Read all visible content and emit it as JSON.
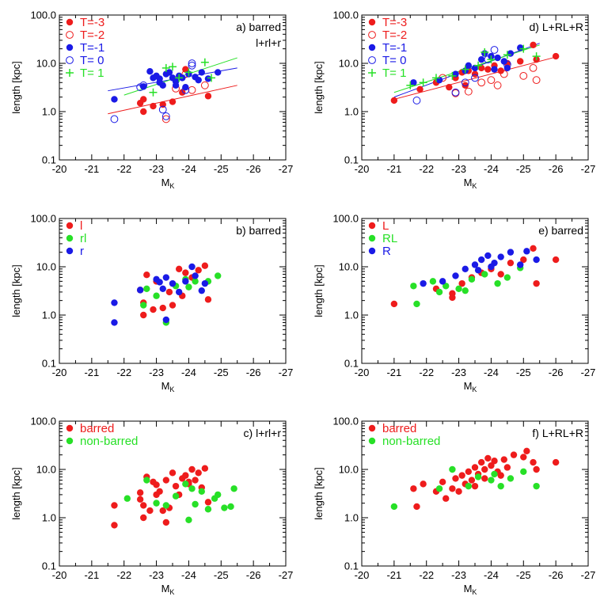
{
  "colors": {
    "red": "#ee1c1c",
    "green": "#27e027",
    "blue": "#1a1ae6",
    "axis": "#000000"
  },
  "axes": {
    "xlabel": "M",
    "xlabel_sub": "K",
    "ylabel": "length [kpc]",
    "xlim": [
      -20,
      -27
    ],
    "ylim": [
      0.1,
      100
    ],
    "yscale": "log",
    "xticks": [
      "-20",
      "-21",
      "-22",
      "-23",
      "-24",
      "-25",
      "-26",
      "-27"
    ],
    "yticks": [
      "0.1",
      "1.0",
      "10.0",
      "100.0"
    ]
  },
  "chart_data": [
    {
      "id": "a",
      "type": "scatter",
      "title_lines": [
        "a)  barred",
        "l+rl+r"
      ],
      "legend": [
        {
          "label": "T=-3",
          "marker": "filled",
          "color": "red"
        },
        {
          "label": "T=-2",
          "marker": "open",
          "color": "red"
        },
        {
          "label": "T=-1",
          "marker": "filled",
          "color": "blue"
        },
        {
          "label": "T= 0",
          "marker": "open",
          "color": "blue"
        },
        {
          "label": "T= 1",
          "marker": "plus",
          "color": "green"
        }
      ],
      "fits": [
        {
          "color": "red",
          "x": [
            -21.5,
            -25.5
          ],
          "y": [
            0.9,
            3.5
          ]
        },
        {
          "color": "blue",
          "x": [
            -21.5,
            -25.5
          ],
          "y": [
            2.7,
            8.0
          ]
        },
        {
          "color": "green",
          "x": [
            -22.0,
            -25.5
          ],
          "y": [
            2.2,
            13.0
          ]
        }
      ],
      "series": [
        {
          "marker": "filled",
          "color": "red",
          "x": [
            -22.6,
            -22.6,
            -22.9,
            -23.2,
            -23.5,
            -23.8,
            -24.6,
            -22.5,
            -23.9
          ],
          "y": [
            1.8,
            1.0,
            1.3,
            1.4,
            1.6,
            2.5,
            2.1,
            1.5,
            7.5
          ]
        },
        {
          "marker": "open",
          "color": "red",
          "x": [
            -23.3,
            -23.6,
            -24.1,
            -24.5,
            -23.9
          ],
          "y": [
            0.7,
            3.0,
            2.8,
            3.5,
            6.0
          ]
        },
        {
          "marker": "filled",
          "color": "blue",
          "x": [
            -21.7,
            -22.6,
            -22.8,
            -23.0,
            -23.1,
            -23.2,
            -23.3,
            -23.4,
            -23.5,
            -23.6,
            -23.7,
            -23.8,
            -24.0,
            -24.2,
            -24.4,
            -24.6,
            -24.9,
            -22.9,
            -23.1,
            -23.6,
            -24.3,
            -23.9
          ],
          "y": [
            1.8,
            3.3,
            6.8,
            5.5,
            4.8,
            3.5,
            6.0,
            6.5,
            5.0,
            4.2,
            5.5,
            5.0,
            6.0,
            5.2,
            6.5,
            4.8,
            6.5,
            5.0,
            4.0,
            3.5,
            4.5,
            3.2
          ]
        },
        {
          "marker": "open",
          "color": "blue",
          "x": [
            -21.7,
            -22.5,
            -23.2,
            -23.3,
            -24.1,
            -24.1,
            -23.9,
            -22.6
          ],
          "y": [
            0.7,
            3.2,
            1.1,
            0.8,
            10.0,
            9.0,
            2.8,
            3.5
          ]
        },
        {
          "marker": "plus",
          "color": "green",
          "x": [
            -22.9,
            -23.3,
            -23.5,
            -24.5,
            -24.7,
            -24.0,
            -23.7
          ],
          "y": [
            2.5,
            8.0,
            8.5,
            10.5,
            5.0,
            6.5,
            5.0
          ]
        }
      ]
    },
    {
      "id": "d",
      "type": "scatter",
      "title_lines": [
        "d)  L+RL+R"
      ],
      "legend": [
        {
          "label": "T=-3",
          "marker": "filled",
          "color": "red"
        },
        {
          "label": "T=-2",
          "marker": "open",
          "color": "red"
        },
        {
          "label": "T=-1",
          "marker": "filled",
          "color": "blue"
        },
        {
          "label": "T= 0",
          "marker": "open",
          "color": "blue"
        },
        {
          "label": "T= 1",
          "marker": "plus",
          "color": "green"
        }
      ],
      "fits": [
        {
          "color": "red",
          "x": [
            -21.0,
            -26.0
          ],
          "y": [
            1.8,
            13.5
          ]
        },
        {
          "color": "blue",
          "x": [
            -21.0,
            -25.5
          ],
          "y": [
            2.0,
            26.0
          ]
        },
        {
          "color": "green",
          "x": [
            -21.0,
            -25.5
          ],
          "y": [
            2.5,
            24.0
          ]
        }
      ],
      "series": [
        {
          "marker": "filled",
          "color": "red",
          "x": [
            -21.0,
            -21.8,
            -22.3,
            -22.7,
            -22.9,
            -23.1,
            -23.3,
            -23.5,
            -23.7,
            -23.9,
            -24.1,
            -24.3,
            -24.5,
            -24.9,
            -25.4,
            -26.0,
            -25.3,
            -23.2
          ],
          "y": [
            1.7,
            2.9,
            4.0,
            3.2,
            5.0,
            6.5,
            7.0,
            6.0,
            8.0,
            7.5,
            9.0,
            7.0,
            10.0,
            11.0,
            12.0,
            14.0,
            24.0,
            3.5
          ]
        },
        {
          "marker": "open",
          "color": "red",
          "x": [
            -22.5,
            -22.9,
            -23.3,
            -23.7,
            -24.0,
            -24.4,
            -25.0,
            -25.3,
            -25.4,
            -24.2
          ],
          "y": [
            5.0,
            2.4,
            2.6,
            4.0,
            4.5,
            6.0,
            5.5,
            8.0,
            4.5,
            3.5
          ]
        },
        {
          "marker": "filled",
          "color": "blue",
          "x": [
            -21.6,
            -22.4,
            -22.9,
            -23.2,
            -23.5,
            -23.7,
            -23.8,
            -24.0,
            -24.2,
            -24.4,
            -24.6,
            -24.9,
            -23.3,
            -24.5,
            -24.1
          ],
          "y": [
            4.0,
            4.5,
            6.0,
            7.0,
            8.0,
            12.0,
            16.0,
            14.0,
            13.0,
            11.0,
            16.0,
            21.0,
            9.0,
            8.0,
            7.5
          ]
        },
        {
          "marker": "open",
          "color": "blue",
          "x": [
            -21.7,
            -22.9,
            -23.5,
            -23.9,
            -24.1,
            -24.5,
            -23.2
          ],
          "y": [
            1.7,
            2.5,
            5.0,
            12.0,
            19.0,
            9.5,
            4.0
          ]
        },
        {
          "marker": "plus",
          "color": "green",
          "x": [
            -21.5,
            -21.9,
            -22.3,
            -22.8,
            -23.2,
            -23.6,
            -24.0,
            -24.5,
            -25.0,
            -25.4,
            -23.8
          ],
          "y": [
            3.5,
            4.0,
            5.0,
            5.5,
            7.5,
            9.0,
            12.0,
            15.0,
            20.0,
            14.0,
            17.0
          ]
        }
      ]
    },
    {
      "id": "b",
      "type": "scatter",
      "title_lines": [
        "b) barred"
      ],
      "legend": [
        {
          "label": "l",
          "marker": "filled",
          "color": "red"
        },
        {
          "label": "rl",
          "marker": "filled",
          "color": "green"
        },
        {
          "label": "r",
          "marker": "filled",
          "color": "blue"
        }
      ],
      "fits": [],
      "series": [
        {
          "marker": "filled",
          "color": "red",
          "x": [
            -22.6,
            -22.6,
            -22.9,
            -23.2,
            -23.5,
            -23.8,
            -24.6,
            -22.5,
            -23.9,
            -22.7,
            -23.4,
            -24.1,
            -24.5,
            -23.0,
            -24.3,
            -23.7
          ],
          "y": [
            1.8,
            1.0,
            1.3,
            1.4,
            1.6,
            2.5,
            2.1,
            3.3,
            7.5,
            6.8,
            3.0,
            6.0,
            10.5,
            5.0,
            8.5,
            9.0
          ]
        },
        {
          "marker": "filled",
          "color": "green",
          "x": [
            -22.7,
            -23.0,
            -23.3,
            -23.6,
            -24.0,
            -24.2,
            -24.6,
            -24.9,
            -23.9,
            -22.6
          ],
          "y": [
            3.5,
            2.5,
            0.7,
            4.0,
            3.8,
            5.0,
            5.0,
            6.5,
            5.5,
            1.6
          ]
        },
        {
          "marker": "filled",
          "color": "blue",
          "x": [
            -21.7,
            -21.7,
            -22.5,
            -23.0,
            -23.1,
            -23.2,
            -23.3,
            -23.5,
            -23.7,
            -23.9,
            -24.1,
            -24.2,
            -24.5,
            -23.3,
            -24.4
          ],
          "y": [
            1.8,
            0.7,
            3.3,
            5.5,
            4.8,
            3.5,
            6.0,
            4.5,
            3.0,
            5.0,
            10.0,
            6.5,
            4.5,
            0.8,
            3.2
          ]
        }
      ]
    },
    {
      "id": "e",
      "type": "scatter",
      "title_lines": [
        "e) barred"
      ],
      "legend": [
        {
          "label": "L",
          "marker": "filled",
          "color": "red"
        },
        {
          "label": "RL",
          "marker": "filled",
          "color": "green"
        },
        {
          "label": "R",
          "marker": "filled",
          "color": "blue"
        }
      ],
      "fits": [],
      "series": [
        {
          "marker": "filled",
          "color": "red",
          "x": [
            -21.0,
            -22.3,
            -22.8,
            -23.1,
            -23.4,
            -23.7,
            -24.0,
            -24.3,
            -24.6,
            -25.0,
            -25.3,
            -25.4,
            -26.0,
            -22.8
          ],
          "y": [
            1.7,
            3.5,
            2.3,
            4.5,
            6.0,
            7.5,
            9.0,
            7.0,
            12.0,
            14.0,
            24.0,
            4.5,
            14.0,
            2.8
          ]
        },
        {
          "marker": "filled",
          "color": "green",
          "x": [
            -21.6,
            -21.7,
            -22.2,
            -22.6,
            -23.0,
            -23.4,
            -23.8,
            -24.2,
            -24.5,
            -24.9,
            -23.2,
            -22.4
          ],
          "y": [
            4.0,
            1.7,
            5.0,
            4.0,
            3.5,
            5.5,
            7.0,
            4.5,
            6.0,
            9.5,
            3.2,
            3.0
          ]
        },
        {
          "marker": "filled",
          "color": "blue",
          "x": [
            -21.9,
            -22.5,
            -22.9,
            -23.2,
            -23.5,
            -23.7,
            -23.9,
            -24.1,
            -24.3,
            -24.6,
            -24.9,
            -25.1,
            -25.4,
            -24.0,
            -23.6
          ],
          "y": [
            4.5,
            5.0,
            6.5,
            9.0,
            11.0,
            14.0,
            17.0,
            12.0,
            16.0,
            20.0,
            11.0,
            21.0,
            14.0,
            10.0,
            8.5
          ]
        }
      ]
    },
    {
      "id": "c",
      "type": "scatter",
      "title_lines": [
        "c)  l+rl+r"
      ],
      "legend": [
        {
          "label": "barred",
          "marker": "filled",
          "color": "red"
        },
        {
          "label": "non-barred",
          "marker": "filled",
          "color": "green"
        }
      ],
      "fits": [],
      "series": [
        {
          "marker": "filled",
          "color": "red",
          "x": [
            -21.7,
            -21.7,
            -22.5,
            -22.6,
            -22.6,
            -22.7,
            -22.9,
            -23.0,
            -23.1,
            -23.2,
            -23.3,
            -23.3,
            -23.5,
            -23.6,
            -23.7,
            -23.8,
            -23.9,
            -24.0,
            -24.1,
            -24.2,
            -24.3,
            -24.4,
            -24.5,
            -24.6,
            -22.8,
            -23.4,
            -24.0,
            -23.0,
            -22.5
          ],
          "y": [
            1.8,
            0.7,
            3.3,
            1.0,
            1.8,
            7.0,
            5.5,
            4.8,
            3.5,
            1.4,
            0.8,
            6.0,
            8.5,
            4.5,
            3.0,
            6.5,
            7.5,
            5.0,
            10.0,
            6.0,
            8.5,
            4.2,
            10.5,
            2.1,
            1.4,
            1.6,
            5.5,
            3.0,
            2.4
          ]
        },
        {
          "marker": "filled",
          "color": "green",
          "x": [
            -22.1,
            -22.7,
            -23.0,
            -23.3,
            -23.6,
            -24.0,
            -24.2,
            -24.4,
            -24.6,
            -24.8,
            -25.1,
            -25.3,
            -25.4,
            -24.9,
            -23.9,
            -24.1
          ],
          "y": [
            2.5,
            6.0,
            2.0,
            1.8,
            2.8,
            0.9,
            1.9,
            3.5,
            1.5,
            2.5,
            1.6,
            1.7,
            4.0,
            3.0,
            5.0,
            4.0
          ]
        }
      ]
    },
    {
      "id": "f",
      "type": "scatter",
      "title_lines": [
        "f)  L+RL+R"
      ],
      "legend": [
        {
          "label": "barred",
          "marker": "filled",
          "color": "red"
        },
        {
          "label": "non-barred",
          "marker": "filled",
          "color": "green"
        }
      ],
      "fits": [],
      "series": [
        {
          "marker": "filled",
          "color": "red",
          "x": [
            -21.6,
            -21.7,
            -21.9,
            -22.3,
            -22.5,
            -22.6,
            -22.8,
            -22.9,
            -23.0,
            -23.1,
            -23.2,
            -23.3,
            -23.4,
            -23.5,
            -23.6,
            -23.7,
            -23.8,
            -23.9,
            -24.0,
            -24.1,
            -24.2,
            -24.4,
            -24.5,
            -24.7,
            -25.0,
            -25.1,
            -25.3,
            -25.4,
            -26.0,
            -23.5,
            -23.8,
            -24.3
          ],
          "y": [
            4.0,
            1.7,
            5.0,
            3.5,
            5.5,
            2.5,
            4.0,
            6.5,
            3.5,
            7.5,
            5.0,
            9.0,
            6.0,
            11.0,
            8.0,
            14.0,
            10.0,
            17.0,
            12.0,
            15.0,
            9.0,
            16.0,
            11.0,
            20.0,
            18.0,
            24.0,
            14.0,
            10.0,
            14.0,
            4.5,
            6.5,
            7.5
          ]
        },
        {
          "marker": "filled",
          "color": "green",
          "x": [
            -21.0,
            -22.4,
            -22.8,
            -23.3,
            -23.6,
            -24.0,
            -24.3,
            -24.6,
            -25.0,
            -25.4,
            -24.1
          ],
          "y": [
            1.7,
            4.0,
            10.0,
            4.5,
            7.0,
            6.0,
            4.5,
            6.5,
            9.0,
            4.5,
            8.0
          ]
        }
      ]
    }
  ]
}
